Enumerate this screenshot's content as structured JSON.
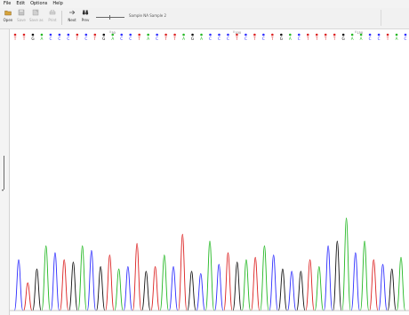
{
  "menu": {
    "items": [
      {
        "id": "file",
        "label": "File"
      },
      {
        "id": "edit",
        "label": "Edit"
      },
      {
        "id": "options",
        "label": "Options"
      },
      {
        "id": "help",
        "label": "Help"
      }
    ]
  },
  "toolbar": {
    "buttons": [
      {
        "id": "open",
        "label": "Open",
        "icon": "folder-icon",
        "enabled": true
      },
      {
        "id": "save",
        "label": "Save",
        "icon": "save-icon",
        "enabled": false
      },
      {
        "id": "save-as",
        "label": "Save as",
        "icon": "save-as-icon",
        "enabled": false
      },
      {
        "id": "print",
        "label": "Print",
        "icon": "printer-icon",
        "enabled": false
      },
      {
        "id": "next",
        "label": "Next",
        "icon": "next-icon",
        "enabled": true
      },
      {
        "id": "prev",
        "label": "Prev",
        "icon": "binoculars-icon",
        "enabled": true
      }
    ],
    "sample_name": "Sample NA Sample 2"
  },
  "chart_data": {
    "type": "line",
    "title": "",
    "xlabel": "",
    "ylabel": "",
    "position_markers": [
      "50",
      "100",
      "150"
    ],
    "base_calls": [
      "T",
      "T",
      "G",
      "A",
      "C",
      "C",
      "C",
      "T",
      "C",
      "T",
      "G",
      "A",
      "C",
      "C",
      "T",
      "A",
      "C",
      "T",
      "T",
      "A",
      "G",
      "A",
      "C",
      "C",
      "C",
      "T",
      "C",
      "T",
      "C",
      "T",
      "G",
      "A",
      "C",
      "T",
      "T",
      "T",
      "T",
      "G",
      "A",
      "A",
      "C",
      "C",
      "T",
      "A",
      "C"
    ],
    "base_colors": {
      "A": "#23b823",
      "C": "#2d2dff",
      "G": "#111111",
      "T": "#dc2020"
    },
    "peaks": [
      {
        "base": "C",
        "amplitude": 0.22
      },
      {
        "base": "T",
        "amplitude": 0.12
      },
      {
        "base": "G",
        "amplitude": 0.18
      },
      {
        "base": "A",
        "amplitude": 0.28
      },
      {
        "base": "C",
        "amplitude": 0.25
      },
      {
        "base": "T",
        "amplitude": 0.22
      },
      {
        "base": "G",
        "amplitude": 0.21
      },
      {
        "base": "A",
        "amplitude": 0.28
      },
      {
        "base": "C",
        "amplitude": 0.26
      },
      {
        "base": "G",
        "amplitude": 0.19
      },
      {
        "base": "T",
        "amplitude": 0.24
      },
      {
        "base": "A",
        "amplitude": 0.18
      },
      {
        "base": "C",
        "amplitude": 0.19
      },
      {
        "base": "T",
        "amplitude": 0.29
      },
      {
        "base": "G",
        "amplitude": 0.17
      },
      {
        "base": "T",
        "amplitude": 0.19
      },
      {
        "base": "A",
        "amplitude": 0.24
      },
      {
        "base": "C",
        "amplitude": 0.19
      },
      {
        "base": "T",
        "amplitude": 0.33
      },
      {
        "base": "G",
        "amplitude": 0.17
      },
      {
        "base": "C",
        "amplitude": 0.16
      },
      {
        "base": "A",
        "amplitude": 0.3
      },
      {
        "base": "C",
        "amplitude": 0.2
      },
      {
        "base": "T",
        "amplitude": 0.25
      },
      {
        "base": "G",
        "amplitude": 0.21
      },
      {
        "base": "A",
        "amplitude": 0.22
      },
      {
        "base": "T",
        "amplitude": 0.23
      },
      {
        "base": "A",
        "amplitude": 0.28
      },
      {
        "base": "C",
        "amplitude": 0.24
      },
      {
        "base": "G",
        "amplitude": 0.18
      },
      {
        "base": "C",
        "amplitude": 0.17
      },
      {
        "base": "G",
        "amplitude": 0.17
      },
      {
        "base": "T",
        "amplitude": 0.22
      },
      {
        "base": "A",
        "amplitude": 0.19
      },
      {
        "base": "C",
        "amplitude": 0.28
      },
      {
        "base": "G",
        "amplitude": 0.3
      },
      {
        "base": "A",
        "amplitude": 0.4
      },
      {
        "base": "C",
        "amplitude": 0.25
      },
      {
        "base": "A",
        "amplitude": 0.3
      },
      {
        "base": "T",
        "amplitude": 0.22
      },
      {
        "base": "C",
        "amplitude": 0.2
      },
      {
        "base": "G",
        "amplitude": 0.18
      },
      {
        "base": "A",
        "amplitude": 0.23
      }
    ]
  }
}
